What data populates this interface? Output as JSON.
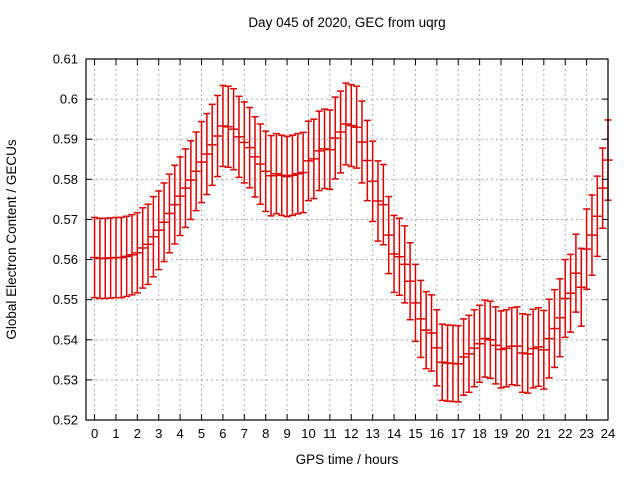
{
  "page": {
    "background": "#ffffff"
  },
  "chart_data": {
    "type": "scatter",
    "style": "yerrorbars",
    "title": "Day 045 of 2020, GEC from uqrg",
    "xlabel": "GPS time / hours",
    "ylabel": "Global Electron Content / GECUs",
    "xlim": [
      -0.4,
      24
    ],
    "ylim": [
      0.52,
      0.61
    ],
    "grid": true,
    "legend": "none",
    "series_color": "#dd0000",
    "grid_color": "#aaaaaa",
    "frame_color": "#000000",
    "xticks": {
      "values": [
        0,
        1,
        2,
        3,
        4,
        5,
        6,
        7,
        8,
        9,
        10,
        11,
        12,
        13,
        14,
        15,
        16,
        17,
        18,
        19,
        20,
        21,
        22,
        23,
        24
      ],
      "labels": [
        "0",
        "1",
        "2",
        "3",
        "4",
        "5",
        "6",
        "7",
        "8",
        "9",
        "10",
        "11",
        "12",
        "13",
        "14",
        "15",
        "16",
        "17",
        "18",
        "19",
        "20",
        "21",
        "22",
        "23",
        "24"
      ]
    },
    "yticks": {
      "values": [
        0.52,
        0.53,
        0.54,
        0.55,
        0.56,
        0.57,
        0.58,
        0.59,
        0.6,
        0.61
      ],
      "labels": [
        "0.52",
        "0.53",
        "0.54",
        "0.55",
        "0.56",
        "0.57",
        "0.58",
        "0.59",
        "0.6",
        "0.61"
      ]
    },
    "x": [
      0,
      0.25,
      0.5,
      0.75,
      1,
      1.25,
      1.5,
      1.75,
      2,
      2.25,
      2.5,
      2.75,
      3,
      3.25,
      3.5,
      3.75,
      4,
      4.25,
      4.5,
      4.75,
      5,
      5.25,
      5.5,
      5.75,
      6,
      6.25,
      6.5,
      6.75,
      7,
      7.25,
      7.5,
      7.75,
      8,
      8.25,
      8.5,
      8.75,
      9,
      9.25,
      9.5,
      9.75,
      10,
      10.25,
      10.5,
      10.75,
      11,
      11.25,
      11.5,
      11.75,
      12,
      12.25,
      12.5,
      12.75,
      13,
      13.25,
      13.5,
      13.75,
      14,
      14.25,
      14.5,
      14.75,
      15,
      15.25,
      15.5,
      15.75,
      16,
      16.25,
      16.5,
      16.75,
      17,
      17.25,
      17.5,
      17.75,
      18,
      18.25,
      18.5,
      18.75,
      19,
      19.25,
      19.5,
      19.75,
      20,
      20.25,
      20.5,
      20.75,
      21,
      21.25,
      21.5,
      21.75,
      22,
      22.25,
      22.5,
      22.75,
      23,
      23.25,
      23.5,
      23.75,
      24
    ],
    "y": [
      0.5605,
      0.5603,
      0.5603,
      0.5604,
      0.5605,
      0.5605,
      0.5608,
      0.5612,
      0.5617,
      0.5629,
      0.5638,
      0.5657,
      0.5673,
      0.5693,
      0.5715,
      0.5737,
      0.5758,
      0.5778,
      0.5798,
      0.582,
      0.5843,
      0.5863,
      0.5886,
      0.5908,
      0.5933,
      0.5931,
      0.5925,
      0.5906,
      0.5892,
      0.5879,
      0.5856,
      0.5838,
      0.582,
      0.5809,
      0.5814,
      0.581,
      0.5807,
      0.581,
      0.5814,
      0.5817,
      0.5846,
      0.5851,
      0.5871,
      0.5876,
      0.5874,
      0.5903,
      0.5918,
      0.5938,
      0.5934,
      0.593,
      0.5893,
      0.5847,
      0.5795,
      0.5746,
      0.5737,
      0.5661,
      0.5614,
      0.5607,
      0.5588,
      0.5546,
      0.5492,
      0.5452,
      0.5424,
      0.5417,
      0.538,
      0.5344,
      0.5342,
      0.5341,
      0.534,
      0.5357,
      0.5365,
      0.5379,
      0.539,
      0.5403,
      0.54,
      0.5386,
      0.5376,
      0.5379,
      0.5384,
      0.5384,
      0.5367,
      0.5365,
      0.5378,
      0.5382,
      0.5375,
      0.5403,
      0.5428,
      0.5455,
      0.5503,
      0.5516,
      0.5566,
      0.5531,
      0.5626,
      0.5661,
      0.5708,
      0.5778,
      0.5848
    ],
    "yerr": [
      0.01,
      0.01,
      0.01,
      0.01,
      0.01,
      0.01,
      0.01,
      0.01,
      0.01,
      0.01,
      0.01,
      0.01,
      0.0098,
      0.0098,
      0.0098,
      0.0098,
      0.0098,
      0.0098,
      0.0098,
      0.0098,
      0.0101,
      0.0101,
      0.0101,
      0.0101,
      0.0101,
      0.0101,
      0.0101,
      0.0101,
      0.0101,
      0.01,
      0.01,
      0.01,
      0.01,
      0.01,
      0.01,
      0.01,
      0.01,
      0.01,
      0.01,
      0.01,
      0.0099,
      0.0099,
      0.0099,
      0.0099,
      0.0099,
      0.0102,
      0.0102,
      0.0102,
      0.0102,
      0.0102,
      0.0102,
      0.01,
      0.01,
      0.01,
      0.01,
      0.0096,
      0.0096,
      0.0096,
      0.0096,
      0.0096,
      0.0096,
      0.0096,
      0.0096,
      0.0095,
      0.0095,
      0.0095,
      0.0095,
      0.0095,
      0.0095,
      0.0095,
      0.0096,
      0.0096,
      0.0096,
      0.0096,
      0.0096,
      0.0096,
      0.0096,
      0.0096,
      0.0096,
      0.0098,
      0.0098,
      0.0098,
      0.0098,
      0.0098,
      0.0098,
      0.0098,
      0.0097,
      0.0097,
      0.0097,
      0.0097,
      0.0097,
      0.0097,
      0.01,
      0.01,
      0.01,
      0.01,
      0.01
    ]
  }
}
